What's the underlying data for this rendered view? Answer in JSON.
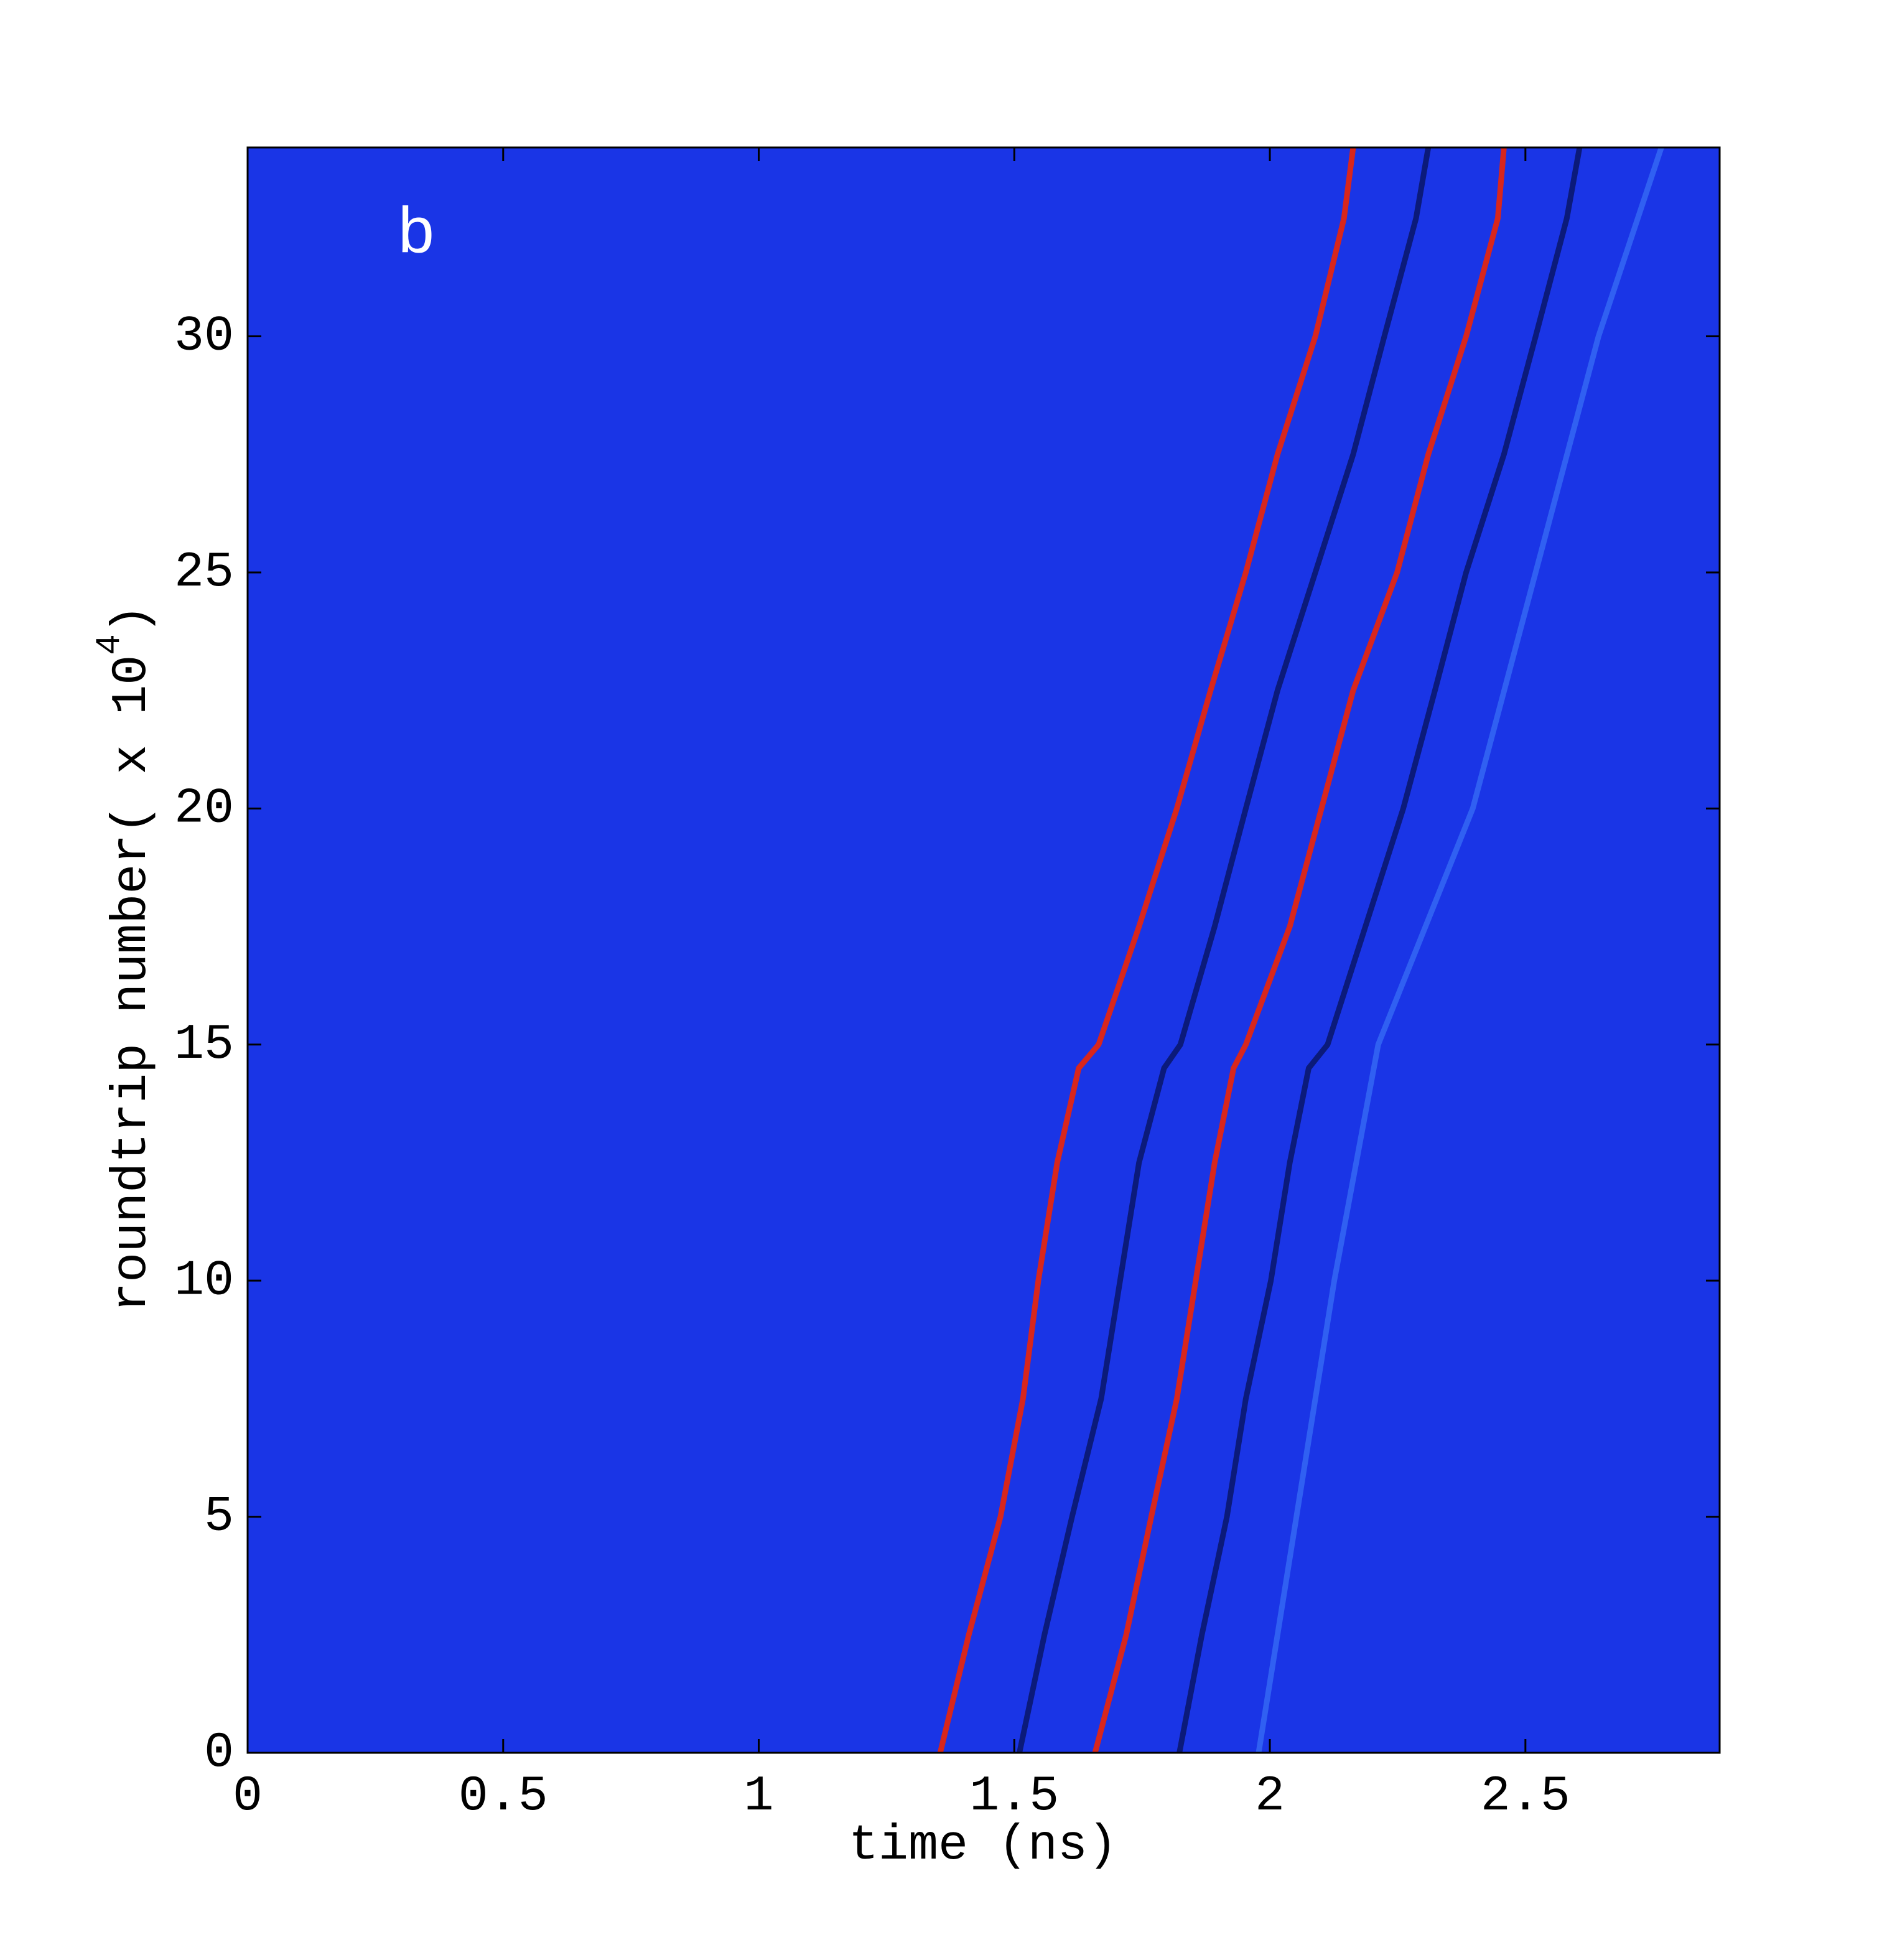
{
  "chart_data": {
    "type": "line",
    "annotation": "b",
    "xlabel": "time (ns)",
    "ylabel": "roundtrip number( x 10",
    "ylabel_exponent": "4",
    "ylabel_end": ")",
    "xlim": [
      0,
      2.88
    ],
    "ylim": [
      0,
      34
    ],
    "xticks": [
      0,
      0.5,
      1,
      1.5,
      2,
      2.5
    ],
    "yticks": [
      0,
      5,
      10,
      15,
      20,
      25,
      30
    ],
    "plot_color": "#1a35e6",
    "series": [
      {
        "color": "#d8261c",
        "x": [
          1.355,
          1.411,
          1.473,
          1.517,
          1.547,
          1.584,
          1.626,
          1.665,
          1.744,
          1.818,
          1.884,
          1.953,
          2.015,
          2.089,
          2.145,
          2.163
        ],
        "values": [
          0,
          2.5,
          5,
          7.5,
          10,
          12.5,
          14.5,
          15,
          17.5,
          20,
          22.5,
          25,
          27.5,
          30,
          32.5,
          34
        ]
      },
      {
        "color": "#0b1a7a",
        "x": [
          1.51,
          1.559,
          1.613,
          1.67,
          1.707,
          1.744,
          1.793,
          1.825,
          1.892,
          1.953,
          2.015,
          2.089,
          2.163,
          2.224,
          2.286,
          2.31
        ],
        "values": [
          0,
          2.5,
          5,
          7.5,
          10,
          12.5,
          14.5,
          15,
          17.5,
          20,
          22.5,
          25,
          27.5,
          30,
          32.5,
          34
        ]
      },
      {
        "color": "#d8261c",
        "x": [
          1.658,
          1.719,
          1.768,
          1.818,
          1.855,
          1.892,
          1.929,
          1.953,
          2.039,
          2.101,
          2.163,
          2.249,
          2.31,
          2.384,
          2.446,
          2.458
        ],
        "values": [
          0,
          2.5,
          5,
          7.5,
          10,
          12.5,
          14.5,
          15,
          17.5,
          20,
          22.5,
          25,
          27.5,
          30,
          32.5,
          34
        ]
      },
      {
        "color": "#0b1a7a",
        "x": [
          1.823,
          1.867,
          1.916,
          1.953,
          2.002,
          2.039,
          2.076,
          2.113,
          2.187,
          2.261,
          2.323,
          2.384,
          2.458,
          2.52,
          2.581,
          2.606
        ],
        "values": [
          0,
          2.5,
          5,
          7.5,
          10,
          12.5,
          14.5,
          15,
          17.5,
          20,
          22.5,
          25,
          27.5,
          30,
          32.5,
          34
        ]
      },
      {
        "color": "#3060f2",
        "x": [
          1.978,
          2.052,
          2.126,
          2.212,
          2.397,
          2.52,
          2.643,
          2.766
        ],
        "values": [
          0,
          5,
          10,
          15,
          20,
          25,
          30,
          34
        ]
      }
    ]
  }
}
